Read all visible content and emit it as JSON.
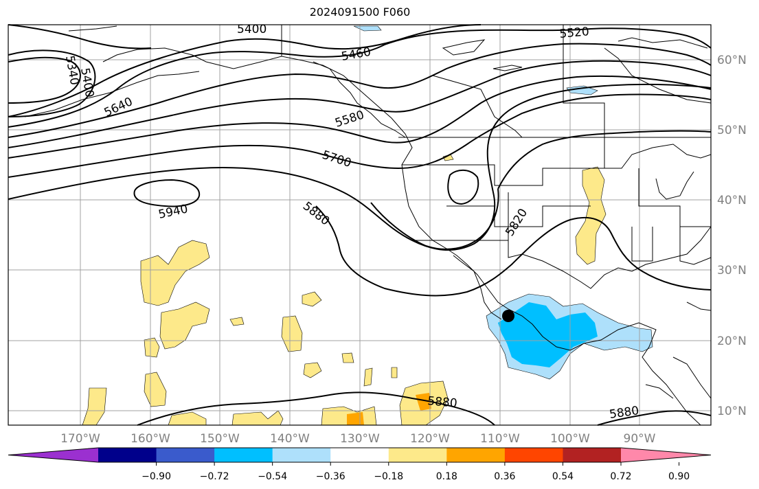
{
  "title": "2024091500 F060",
  "lon_labels": [
    "170°W",
    "160°W",
    "150°W",
    "140°W",
    "130°W",
    "120°W",
    "110°W",
    "100°W",
    "90°W"
  ],
  "lat_labels": [
    "60°N",
    "50°N",
    "40°N",
    "30°N",
    "20°N",
    "10°N"
  ],
  "contour_labels": [
    "5400",
    "5460",
    "5520",
    "5340",
    "5400",
    "5640",
    "5580",
    "5700",
    "5940",
    "5880",
    "5820",
    "5880",
    "5880"
  ],
  "colorbar": {
    "ticks": [
      "−0.90",
      "−0.72",
      "−0.54",
      "−0.36",
      "−0.18",
      "0.18",
      "0.36",
      "0.54",
      "0.72",
      "0.90"
    ],
    "colors": [
      "#9b30d0",
      "#00008b",
      "#3a5bcc",
      "#00bfff",
      "#aee0fb",
      "#ffffff",
      "#fde98a",
      "#ffa500",
      "#ff4500",
      "#b22222",
      "#ff88aa"
    ]
  },
  "colors": {
    "neg_light": "#aee0fb",
    "neg_mid": "#00bfff",
    "pos_light": "#fde98a",
    "pos_mid": "#ffa500",
    "pos_high": "#ff4500"
  },
  "marker": "storm-center-dot"
}
